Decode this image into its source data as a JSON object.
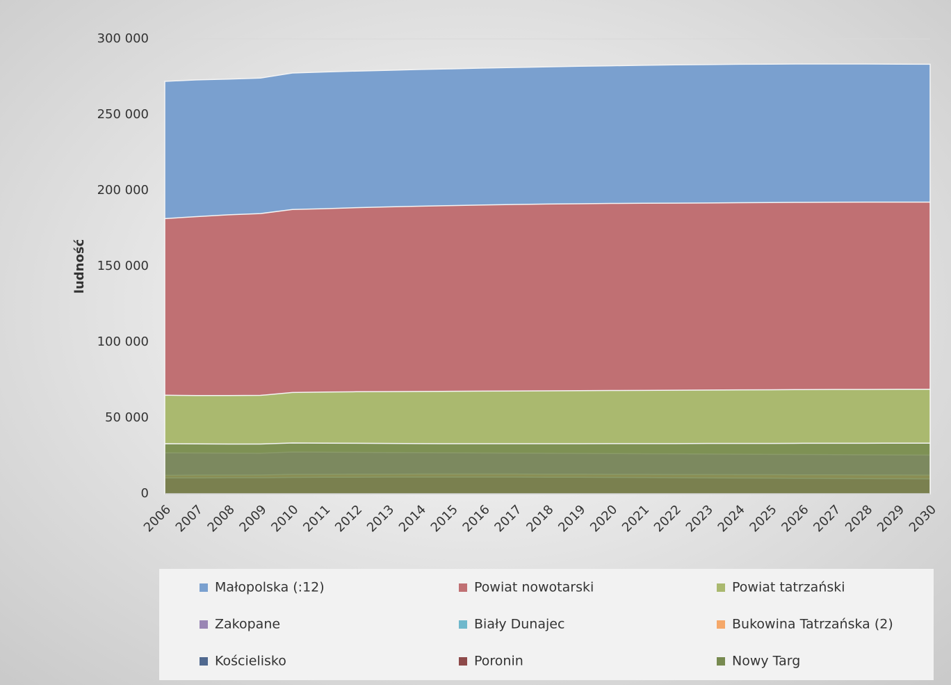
{
  "chart_data": {
    "type": "area",
    "y_label": "ludność",
    "x": [
      "2006",
      "2007",
      "2008",
      "2009",
      "2010",
      "2011",
      "2012",
      "2013",
      "2014",
      "2015",
      "2016",
      "2017",
      "2018",
      "2019",
      "2020",
      "2021",
      "2022",
      "2023",
      "2024",
      "2025",
      "2026",
      "2027",
      "2028",
      "2029",
      "2030"
    ],
    "ylim": [
      0,
      300000
    ],
    "yticks": [
      0,
      {
        "value": 50000,
        "label": "50 000"
      },
      {
        "value": 100000,
        "label": "100 000"
      },
      {
        "value": 150000,
        "label": "150 000"
      },
      {
        "value": 200000,
        "label": "200 000"
      },
      {
        "value": 250000,
        "label": "250 000"
      },
      {
        "value": 300000,
        "label": "300 000"
      }
    ],
    "grid": true,
    "stacked": false,
    "series": [
      {
        "name": "Małopolska (:12)",
        "color": "#7aa0cf",
        "values": [
          272000,
          273000,
          273500,
          274200,
          277500,
          278200,
          278800,
          279300,
          279900,
          280300,
          280800,
          281200,
          281600,
          282000,
          282300,
          282600,
          282900,
          283100,
          283300,
          283400,
          283500,
          283500,
          283500,
          283400,
          283300
        ]
      },
      {
        "name": "Powiat nowotarski",
        "color": "#c07073",
        "values": [
          181500,
          182800,
          184000,
          184800,
          187500,
          188000,
          188700,
          189200,
          189700,
          190100,
          190500,
          190800,
          191100,
          191300,
          191500,
          191600,
          191700,
          191800,
          192000,
          192100,
          192200,
          192300,
          192400,
          192400,
          192400
        ]
      },
      {
        "name": "Powiat tatrzański",
        "color": "#aab96f",
        "values": [
          65000,
          64800,
          64800,
          64900,
          66800,
          67100,
          67300,
          67400,
          67500,
          67600,
          67700,
          67800,
          67900,
          68000,
          68100,
          68200,
          68300,
          68400,
          68500,
          68600,
          68700,
          68800,
          68800,
          68900,
          68900
        ]
      },
      {
        "name": "Zakopane",
        "color": "#9a86b4",
        "values": [
          27000,
          26900,
          26800,
          26700,
          27500,
          27400,
          27300,
          27200,
          27100,
          27000,
          26900,
          26800,
          26700,
          26600,
          26500,
          26400,
          26300,
          26200,
          26100,
          26000,
          25900,
          25800,
          25700,
          25600,
          25500
        ]
      },
      {
        "name": "Biały Dunajec",
        "color": "#6fb8cc",
        "values": [
          7000,
          7000,
          7000,
          7000,
          7100,
          7100,
          7100,
          7100,
          7100,
          7100,
          7100,
          7100,
          7100,
          7100,
          7100,
          7100,
          7100,
          7100,
          7100,
          7100,
          7000,
          7000,
          7000,
          7000,
          7000
        ]
      },
      {
        "name": "Bukowina Tatrzańska (2)",
        "color": "#f5a86a",
        "values": [
          12200,
          12300,
          12300,
          12400,
          12800,
          12800,
          12900,
          12900,
          13000,
          13000,
          13000,
          13000,
          12900,
          12900,
          12800,
          12800,
          12700,
          12700,
          12600,
          12600,
          12500,
          12500,
          12400,
          12400,
          12300
        ]
      },
      {
        "name": "Kościelisko",
        "color": "#50698f",
        "values": [
          1500,
          1500,
          1500,
          1500,
          1500,
          1500,
          1500,
          1500,
          1500,
          1500,
          1500,
          1500,
          1500,
          1500,
          1500,
          1500,
          1500,
          1500,
          1500,
          1500,
          1500,
          1500,
          1500,
          1500,
          1500
        ]
      },
      {
        "name": "Poronin",
        "color": "#8e4a4a",
        "values": [
          10500,
          10500,
          10600,
          10600,
          10800,
          10900,
          10900,
          11000,
          11000,
          11000,
          11000,
          11000,
          10900,
          10900,
          10800,
          10700,
          10600,
          10500,
          10400,
          10300,
          10200,
          10100,
          10000,
          9900,
          9800
        ]
      },
      {
        "name": "Nowy Targ",
        "color": "#778a50",
        "values": [
          33000,
          32900,
          32800,
          32800,
          33500,
          33400,
          33300,
          33200,
          33100,
          33000,
          33000,
          33000,
          33000,
          33000,
          33100,
          33100,
          33100,
          33200,
          33200,
          33200,
          33300,
          33300,
          33300,
          33400,
          33400
        ]
      }
    ]
  }
}
